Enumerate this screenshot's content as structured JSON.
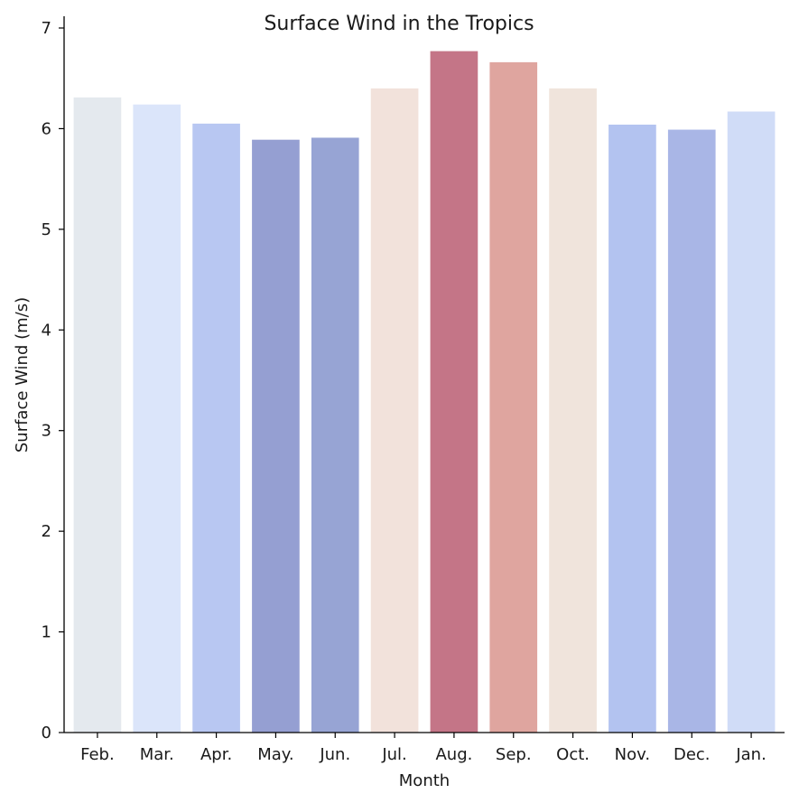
{
  "chart_data": {
    "type": "bar",
    "title": "Surface Wind in the Tropics",
    "xlabel": "Month",
    "ylabel": "Surface Wind (m/s)",
    "categories": [
      "Feb.",
      "Mar.",
      "Apr.",
      "May.",
      "Jun.",
      "Jul.",
      "Aug.",
      "Sep.",
      "Oct.",
      "Nov.",
      "Dec.",
      "Jan."
    ],
    "values": [
      6.31,
      6.24,
      6.05,
      5.89,
      5.91,
      6.4,
      6.77,
      6.66,
      6.4,
      6.04,
      5.99,
      6.17
    ],
    "colors": [
      "#e4e9ee",
      "#dbe5fa",
      "#b8c7f2",
      "#959fd2",
      "#97a4d4",
      "#f2e2db",
      "#c47587",
      "#dfa59f",
      "#f0e4dc",
      "#b3c3f0",
      "#a9b6e6",
      "#d0dcf7"
    ],
    "yticks": [
      0,
      1,
      2,
      3,
      4,
      5,
      6,
      7
    ],
    "ylim": [
      0,
      7.1
    ],
    "grid": false,
    "legend": "none"
  }
}
